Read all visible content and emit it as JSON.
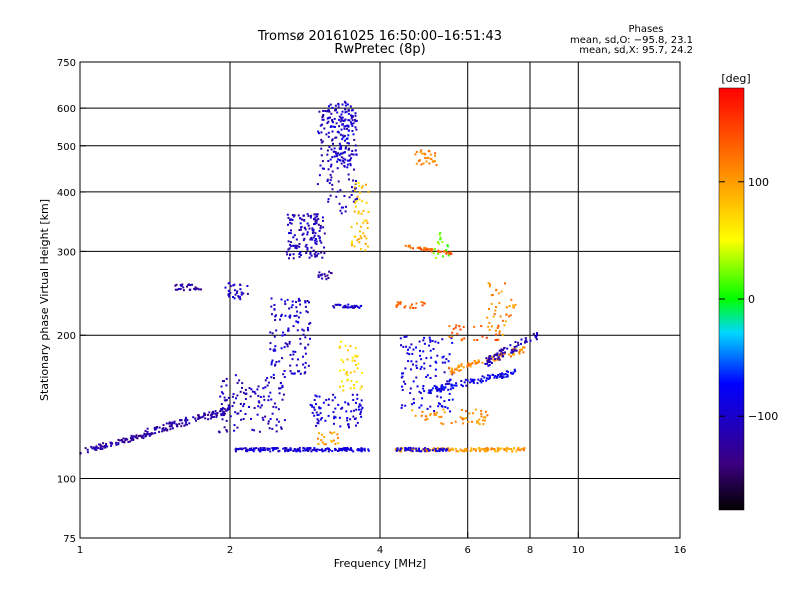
{
  "chart_data": {
    "type": "scatter",
    "title_line1": "Tromsø 20161025 16:50:00–16:51:43",
    "title_line2": "RwPretec (8p)",
    "stats": {
      "heading": "Phases",
      "line_o": "mean, sd,O: −95.8, 23.1",
      "line_x": "mean, sd,X:  95.7, 24.2"
    },
    "xlabel": "Frequency [MHz]",
    "ylabel": "Stationary phase Virtual Height [km]",
    "x_scale": "log",
    "y_scale": "log",
    "xlim": [
      1,
      16
    ],
    "ylim": [
      75,
      750
    ],
    "x_ticks": [
      1,
      2,
      4,
      6,
      8,
      10,
      16
    ],
    "x_tick_labels": [
      "1",
      "2",
      "4",
      "6",
      "8",
      "10",
      "16"
    ],
    "x_grid_lines": [
      2,
      4,
      6,
      8,
      10
    ],
    "y_ticks": [
      75,
      100,
      200,
      300,
      400,
      500,
      600,
      750
    ],
    "y_tick_labels": [
      "75",
      "100",
      "200",
      "300",
      "400",
      "500",
      "600",
      "750"
    ],
    "y_grid_lines": [
      100,
      200,
      300,
      400,
      500,
      600
    ],
    "grid": true,
    "colorbar": {
      "label": "[deg]",
      "range": [
        -180,
        180
      ],
      "ticks": [
        100,
        0,
        -100
      ],
      "tick_labels": [
        "100",
        "0",
        "−100"
      ]
    },
    "clusters": [
      {
        "f": [
          1.0,
          1.35
        ],
        "h": [
          112,
          125
        ],
        "phase": -125,
        "n": 80,
        "trend": "rise"
      },
      {
        "f": [
          1.35,
          2.0
        ],
        "h": [
          122,
          142
        ],
        "phase": -120,
        "n": 130,
        "trend": "rise"
      },
      {
        "f": [
          1.9,
          2.6
        ],
        "h": [
          125,
          165
        ],
        "phase": -110,
        "n": 120
      },
      {
        "f": [
          2.05,
          3.8
        ],
        "h": [
          114,
          116
        ],
        "phase": -95,
        "n": 180
      },
      {
        "f": [
          2.4,
          2.9
        ],
        "h": [
          165,
          240
        ],
        "phase": -100,
        "n": 120
      },
      {
        "f": [
          2.6,
          3.1
        ],
        "h": [
          290,
          360
        ],
        "phase": -110,
        "n": 140
      },
      {
        "f": [
          3.0,
          3.6
        ],
        "h": [
          360,
          600
        ],
        "phase": -110,
        "n": 160
      },
      {
        "f": [
          3.15,
          3.55
        ],
        "h": [
          450,
          620
        ],
        "phase": -95,
        "n": 90
      },
      {
        "f": [
          1.55,
          1.75
        ],
        "h": [
          248,
          256
        ],
        "phase": -125,
        "n": 25
      },
      {
        "f": [
          1.95,
          2.2
        ],
        "h": [
          238,
          258
        ],
        "phase": -105,
        "n": 30
      },
      {
        "f": [
          2.9,
          3.7
        ],
        "h": [
          128,
          150
        ],
        "phase": -95,
        "n": 80
      },
      {
        "f": [
          3.2,
          3.7
        ],
        "h": [
          228,
          232
        ],
        "phase": -100,
        "n": 30
      },
      {
        "f": [
          3.0,
          3.2
        ],
        "h": [
          262,
          272
        ],
        "phase": -120,
        "n": 15
      },
      {
        "f": [
          3.5,
          3.8
        ],
        "h": [
          300,
          420
        ],
        "phase": 80,
        "n": 50
      },
      {
        "f": [
          3.3,
          3.7
        ],
        "h": [
          150,
          195
        ],
        "phase": 70,
        "n": 40
      },
      {
        "f": [
          3.0,
          3.3
        ],
        "h": [
          118,
          125
        ],
        "phase": 100,
        "n": 20
      },
      {
        "f": [
          4.3,
          7.8
        ],
        "h": [
          114,
          116
        ],
        "phase": 100,
        "n": 140
      },
      {
        "f": [
          4.3,
          5.5
        ],
        "h": [
          114,
          116
        ],
        "phase": -90,
        "n": 50
      },
      {
        "f": [
          4.4,
          5.6
        ],
        "h": [
          138,
          200
        ],
        "phase": -90,
        "n": 120
      },
      {
        "f": [
          5.0,
          7.5
        ],
        "h": [
          150,
          170
        ],
        "phase": -85,
        "n": 100,
        "trend": "rise"
      },
      {
        "f": [
          5.5,
          7.8
        ],
        "h": [
          165,
          190
        ],
        "phase": 110,
        "n": 80,
        "trend": "rise"
      },
      {
        "f": [
          6.5,
          8.3
        ],
        "h": [
          170,
          205
        ],
        "phase": -110,
        "n": 70,
        "trend": "rise"
      },
      {
        "f": [
          5.0,
          5.5
        ],
        "h": [
          290,
          330
        ],
        "phase": 20,
        "n": 20
      },
      {
        "f": [
          4.5,
          5.6
        ],
        "h": [
          295,
          310
        ],
        "phase": 130,
        "n": 40,
        "trend": "fall"
      },
      {
        "f": [
          4.7,
          5.2
        ],
        "h": [
          450,
          490
        ],
        "phase": 110,
        "n": 30
      },
      {
        "f": [
          4.3,
          5.0
        ],
        "h": [
          228,
          235
        ],
        "phase": 130,
        "n": 20
      },
      {
        "f": [
          5.5,
          7.0
        ],
        "h": [
          195,
          210
        ],
        "phase": 130,
        "n": 30
      },
      {
        "f": [
          4.6,
          6.6
        ],
        "h": [
          130,
          140
        ],
        "phase": 110,
        "n": 50
      },
      {
        "f": [
          6.5,
          7.5
        ],
        "h": [
          200,
          260
        ],
        "phase": 110,
        "n": 40
      }
    ]
  }
}
